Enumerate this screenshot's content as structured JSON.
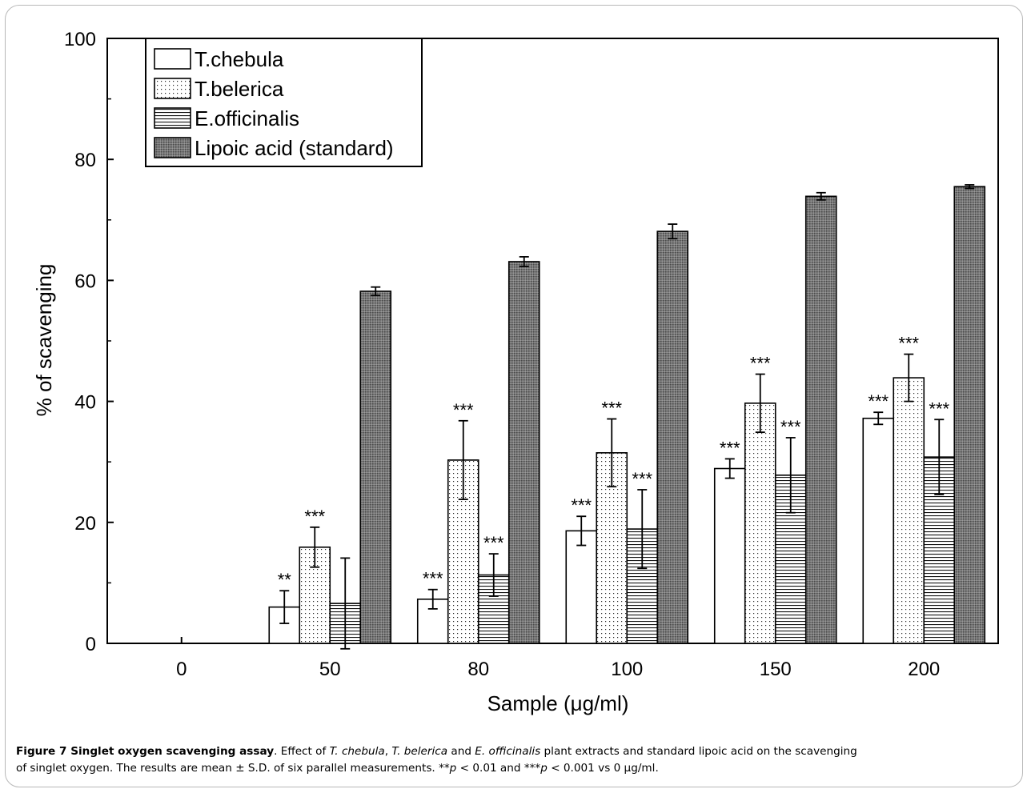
{
  "chart_data": {
    "type": "bar",
    "xlabel": "Sample (μg/ml)",
    "ylabel": "% of scavenging",
    "ylim": [
      0,
      100
    ],
    "yticks": [
      "0",
      "20",
      "40",
      "60",
      "80",
      "100"
    ],
    "categories": [
      "0",
      "50",
      "80",
      "100",
      "150",
      "200"
    ],
    "legend_position": "top-left",
    "grid": false,
    "series": [
      {
        "name": "T.chebula",
        "pattern": "white",
        "values": [
          0,
          6.0,
          7.3,
          18.6,
          28.9,
          37.2
        ],
        "errors": [
          0,
          2.7,
          1.6,
          2.4,
          1.6,
          1.0
        ],
        "stars": [
          "",
          "**",
          "***",
          "***",
          "***",
          "***"
        ]
      },
      {
        "name": "T.belerica",
        "pattern": "dots",
        "values": [
          0,
          15.9,
          30.3,
          31.5,
          39.7,
          43.9
        ],
        "errors": [
          0,
          3.3,
          6.5,
          5.6,
          4.8,
          3.9
        ],
        "stars": [
          "",
          "***",
          "***",
          "***",
          "***",
          "***"
        ]
      },
      {
        "name": "E.officinalis",
        "pattern": "hlines",
        "values": [
          0,
          6.6,
          11.3,
          18.9,
          27.8,
          30.8
        ],
        "errors": [
          0,
          7.5,
          3.5,
          6.5,
          6.2,
          6.2
        ],
        "stars": [
          "",
          "",
          "***",
          "***",
          "***",
          "***"
        ]
      },
      {
        "name": "Lipoic acid (standard)",
        "pattern": "dense",
        "values": [
          0,
          58.2,
          63.1,
          68.1,
          73.9,
          75.5
        ],
        "errors": [
          0,
          0.7,
          0.8,
          1.2,
          0.6,
          0.3
        ],
        "stars": [
          "",
          "",
          "",
          "",
          "",
          ""
        ]
      }
    ]
  },
  "caption": {
    "label": "Figure 7 Singlet oxygen scavenging assay",
    "line1": [
      {
        "t": ". Effect of "
      },
      {
        "t": "T. chebula",
        "i": true
      },
      {
        "t": ", "
      },
      {
        "t": "T. belerica",
        "i": true
      },
      {
        "t": " and "
      },
      {
        "t": "E. officinalis",
        "i": true
      },
      {
        "t": " plant extracts and standard lipoic acid on the scavenging"
      }
    ],
    "line2": [
      {
        "t": "of singlet oxygen. The results are mean ± S.D. of six parallel measurements. **"
      },
      {
        "t": "p",
        "i": true
      },
      {
        "t": " < 0.01 and ***"
      },
      {
        "t": "p",
        "i": true
      },
      {
        "t": " < 0.001 vs 0 μg/ml."
      }
    ]
  }
}
